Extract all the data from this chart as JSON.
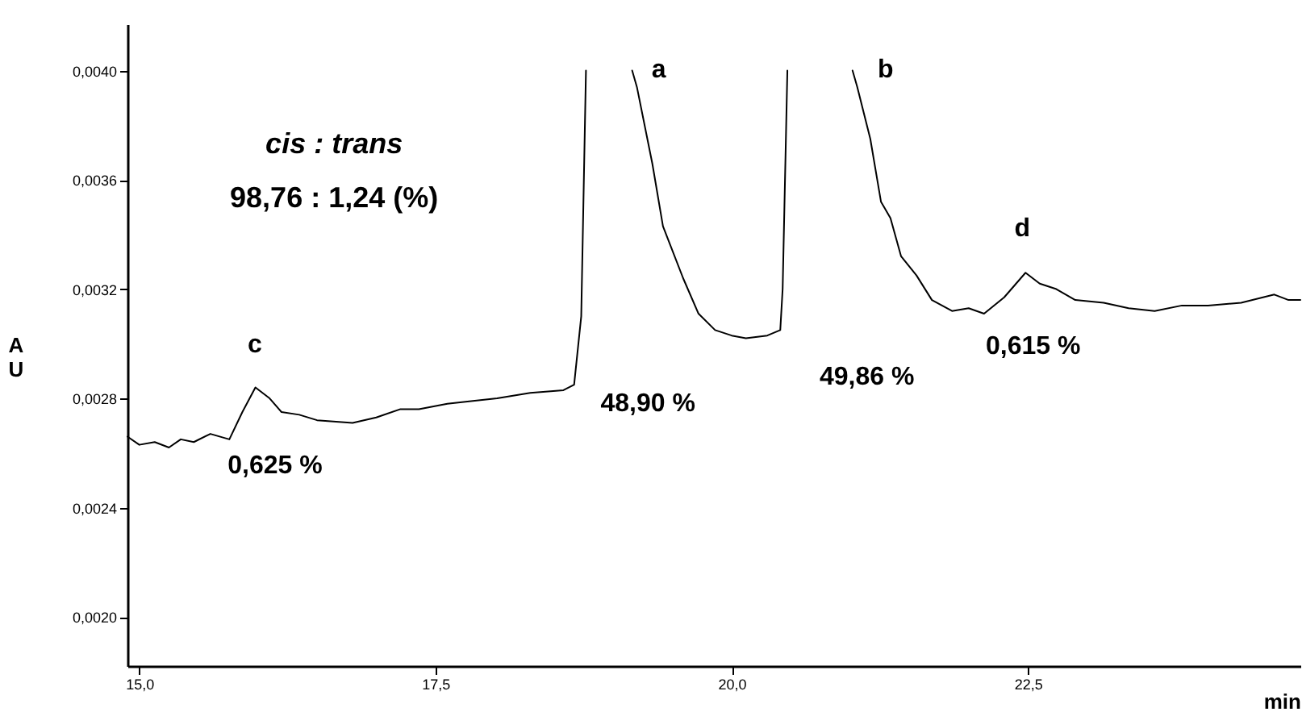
{
  "chart_data": {
    "type": "line",
    "xlabel": "min",
    "ylabel": "AU",
    "series": [
      {
        "color": "#000000",
        "x": [
          14.9,
          15.0,
          15.13,
          15.25,
          15.35,
          15.46,
          15.6,
          15.76,
          15.87,
          15.98,
          16.1,
          16.2,
          16.35,
          16.5,
          16.8,
          17.0,
          17.2,
          17.36,
          17.6,
          17.8,
          18.02,
          18.3,
          18.58,
          18.67,
          18.73,
          18.77,
          18.95,
          19.16,
          19.2,
          19.33,
          19.42,
          19.59,
          19.72,
          19.86,
          20.0,
          20.12,
          20.3,
          20.41,
          20.43,
          20.47,
          20.7,
          21.02,
          21.06,
          21.17,
          21.26,
          21.34,
          21.43,
          21.56,
          21.69,
          21.86,
          22.0,
          22.13,
          22.3,
          22.48,
          22.6,
          22.74,
          22.9,
          23.14,
          23.35,
          23.57,
          23.8,
          24.02,
          24.3,
          24.58,
          24.7,
          24.8
        ],
        "values": [
          0.00266,
          0.00263,
          0.00264,
          0.00262,
          0.00265,
          0.00264,
          0.00267,
          0.00265,
          0.00275,
          0.00284,
          0.0028,
          0.00275,
          0.00274,
          0.00272,
          0.00271,
          0.00273,
          0.00276,
          0.00276,
          0.00278,
          0.00279,
          0.0028,
          0.00282,
          0.00283,
          0.00285,
          0.0031,
          0.004,
          null,
          0.004,
          0.00394,
          0.00366,
          0.00343,
          0.00324,
          0.00311,
          0.00305,
          0.00303,
          0.00302,
          0.00303,
          0.00305,
          0.0032,
          0.004,
          null,
          0.004,
          0.00394,
          0.00375,
          0.00352,
          0.00346,
          0.00332,
          0.00325,
          0.00316,
          0.00312,
          0.00313,
          0.00311,
          0.00317,
          0.00326,
          0.00322,
          0.0032,
          0.00316,
          0.00315,
          0.00313,
          0.00312,
          0.00314,
          0.00314,
          0.00315,
          0.00318,
          0.00316,
          0.00316
        ]
      }
    ],
    "xlim": [
      14.9,
      24.8
    ],
    "xticks": [
      {
        "value": 15,
        "label": "15,0"
      },
      {
        "value": 17.5,
        "label": "17,5"
      },
      {
        "value": 20,
        "label": "20,0"
      },
      {
        "value": 22.5,
        "label": "22,5"
      }
    ],
    "ylim": [
      0.00182,
      0.00417
    ],
    "yticks": [
      {
        "value": 0.002,
        "label": "0,0020"
      },
      {
        "value": 0.0024,
        "label": "0,0024"
      },
      {
        "value": 0.0028,
        "label": "0,0028"
      },
      {
        "value": 0.0032,
        "label": "0,0032"
      },
      {
        "value": 0.0036,
        "label": "0,0036"
      },
      {
        "value": 0.004,
        "label": "0,0040"
      }
    ],
    "annotations": [
      "cis : trans",
      "98,76 : 1,24 (%)",
      "a",
      "b",
      "c",
      "d",
      "48,90 %",
      "49,86 %",
      "0,615 %",
      "0,625 %"
    ],
    "grid": false
  }
}
